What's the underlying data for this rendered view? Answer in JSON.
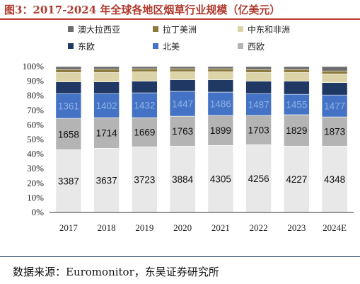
{
  "header": {
    "title": "图3：2017-2024 年全球各地区烟草行业规模（亿美元）"
  },
  "footer": {
    "source": "数据来源：Euromonitor，东吴证券研究所"
  },
  "chart_data": {
    "type": "bar",
    "stacked": "percent",
    "categories": [
      "2017",
      "2018",
      "2019",
      "2020",
      "2021",
      "2022",
      "2023",
      "2024E"
    ],
    "y_ticks": [
      "0%",
      "10%",
      "20%",
      "30%",
      "40%",
      "50%",
      "60%",
      "70%",
      "80%",
      "90%",
      "100%"
    ],
    "ylim": [
      0,
      1
    ],
    "legend_position": "top",
    "series": [
      {
        "name": "西欧",
        "color": "#e8e8e8",
        "share": [
          0.43,
          0.44,
          0.45,
          0.455,
          0.46,
          0.465,
          0.455,
          0.455
        ],
        "labels": [
          "3387",
          "3637",
          "3723",
          "3884",
          "4305",
          "4256",
          "4227",
          "4348"
        ]
      },
      {
        "name": "北美",
        "color": "#b4b4b4",
        "share": [
          0.215,
          0.21,
          0.2,
          0.205,
          0.205,
          0.2,
          0.215,
          0.2
        ],
        "labels": [
          "1658",
          "1714",
          "1669",
          "1763",
          "1899",
          "1703",
          "1829",
          "1873"
        ]
      },
      {
        "name": "东欧",
        "color": "#4472c4",
        "share": [
          0.17,
          0.165,
          0.17,
          0.17,
          0.16,
          0.15,
          0.14,
          0.15
        ],
        "labels": [
          "1361",
          "1402",
          "1432",
          "1447",
          "1486",
          "1487",
          "1455",
          "1477"
        ]
      },
      {
        "name": "中东和非洲",
        "color": "#1f3864",
        "share": [
          0.08,
          0.08,
          0.08,
          0.08,
          0.085,
          0.085,
          0.09,
          0.085
        ],
        "labels": []
      },
      {
        "name": "拉丁美洲",
        "color": "#ddd3a8",
        "share": [
          0.065,
          0.065,
          0.065,
          0.055,
          0.055,
          0.06,
          0.06,
          0.06
        ],
        "labels": []
      },
      {
        "name": "澳大拉西亚",
        "color": "#8c7a3c",
        "share": [
          0.02,
          0.022,
          0.02,
          0.02,
          0.02,
          0.02,
          0.02,
          0.02
        ],
        "labels": []
      },
      {
        "name": "",
        "color": "#6b6b6b",
        "share": [
          0.02,
          0.018,
          0.015,
          0.015,
          0.015,
          0.02,
          0.02,
          0.03
        ],
        "labels": []
      }
    ],
    "legend": [
      {
        "name": "澳大拉西亚",
        "color": "#6b6b6b"
      },
      {
        "name": "拉丁美洲",
        "color": "#8c7a3c"
      },
      {
        "name": "中东和非洲",
        "color": "#ddd3a8"
      },
      {
        "name": "东欧",
        "color": "#1f3864"
      },
      {
        "name": "北美",
        "color": "#4472c4"
      },
      {
        "name": "西欧",
        "color": "#b4b4b4"
      }
    ]
  }
}
